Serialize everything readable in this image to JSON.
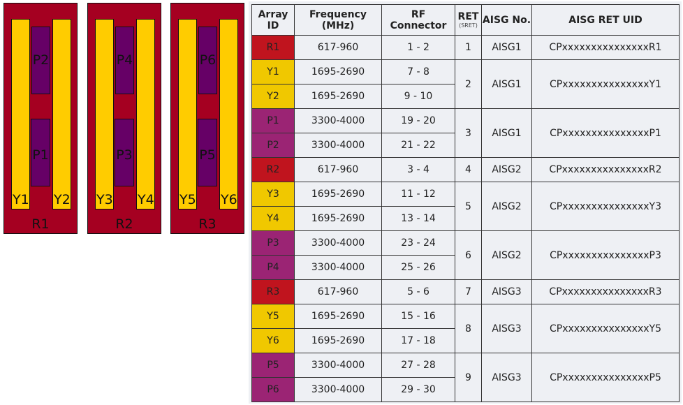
{
  "colors": {
    "panel": "#a50021",
    "yellow": "#ffcc00",
    "purple": "#660066",
    "cell_R": "#c0141e",
    "cell_Y": "#f0c800",
    "cell_P": "#9b2474"
  },
  "panels": [
    {
      "label": "R1",
      "left_y": "Y1",
      "right_y": "Y2",
      "top_p": "P2",
      "bottom_p": "P1"
    },
    {
      "label": "R2",
      "left_y": "Y3",
      "right_y": "Y4",
      "top_p": "P4",
      "bottom_p": "P3"
    },
    {
      "label": "R3",
      "left_y": "Y5",
      "right_y": "Y6",
      "top_p": "P6",
      "bottom_p": "P5"
    }
  ],
  "table": {
    "headers": {
      "array_id": "Array ID",
      "frequency": "Frequency (MHz)",
      "rf_connector": "RF Connector",
      "ret": "RET",
      "ret_sub": "(SRET)",
      "aisg_no": "AISG No.",
      "uid": "AISG RET UID"
    },
    "groups": [
      {
        "ret": "1",
        "aisg": "AISG1",
        "uid": "CPxxxxxxxxxxxxxxxR1",
        "rows": [
          {
            "id": "R1",
            "type": "R",
            "freq": "617-960",
            "rf": "1 - 2"
          }
        ]
      },
      {
        "ret": "2",
        "aisg": "AISG1",
        "uid": "CPxxxxxxxxxxxxxxxY1",
        "rows": [
          {
            "id": "Y1",
            "type": "Y",
            "freq": "1695-2690",
            "rf": "7 - 8"
          },
          {
            "id": "Y2",
            "type": "Y",
            "freq": "1695-2690",
            "rf": "9 - 10"
          }
        ]
      },
      {
        "ret": "3",
        "aisg": "AISG1",
        "uid": "CPxxxxxxxxxxxxxxxP1",
        "rows": [
          {
            "id": "P1",
            "type": "P",
            "freq": "3300-4000",
            "rf": "19 - 20"
          },
          {
            "id": "P2",
            "type": "P",
            "freq": "3300-4000",
            "rf": "21 - 22"
          }
        ]
      },
      {
        "ret": "4",
        "aisg": "AISG2",
        "uid": "CPxxxxxxxxxxxxxxxR2",
        "rows": [
          {
            "id": "R2",
            "type": "R",
            "freq": "617-960",
            "rf": "3 - 4"
          }
        ]
      },
      {
        "ret": "5",
        "aisg": "AISG2",
        "uid": "CPxxxxxxxxxxxxxxxY3",
        "rows": [
          {
            "id": "Y3",
            "type": "Y",
            "freq": "1695-2690",
            "rf": "11 - 12"
          },
          {
            "id": "Y4",
            "type": "Y",
            "freq": "1695-2690",
            "rf": "13 - 14"
          }
        ]
      },
      {
        "ret": "6",
        "aisg": "AISG2",
        "uid": "CPxxxxxxxxxxxxxxxP3",
        "rows": [
          {
            "id": "P3",
            "type": "P",
            "freq": "3300-4000",
            "rf": "23 - 24"
          },
          {
            "id": "P4",
            "type": "P",
            "freq": "3300-4000",
            "rf": "25 - 26"
          }
        ]
      },
      {
        "ret": "7",
        "aisg": "AISG3",
        "uid": "CPxxxxxxxxxxxxxxxR3",
        "rows": [
          {
            "id": "R3",
            "type": "R",
            "freq": "617-960",
            "rf": "5 - 6"
          }
        ]
      },
      {
        "ret": "8",
        "aisg": "AISG3",
        "uid": "CPxxxxxxxxxxxxxxxY5",
        "rows": [
          {
            "id": "Y5",
            "type": "Y",
            "freq": "1695-2690",
            "rf": "15 - 16"
          },
          {
            "id": "Y6",
            "type": "Y",
            "freq": "1695-2690",
            "rf": "17 - 18"
          }
        ]
      },
      {
        "ret": "9",
        "aisg": "AISG3",
        "uid": "CPxxxxxxxxxxxxxxxP5",
        "rows": [
          {
            "id": "P5",
            "type": "P",
            "freq": "3300-4000",
            "rf": "27 - 28"
          },
          {
            "id": "P6",
            "type": "P",
            "freq": "3300-4000",
            "rf": "29 - 30"
          }
        ]
      }
    ]
  }
}
